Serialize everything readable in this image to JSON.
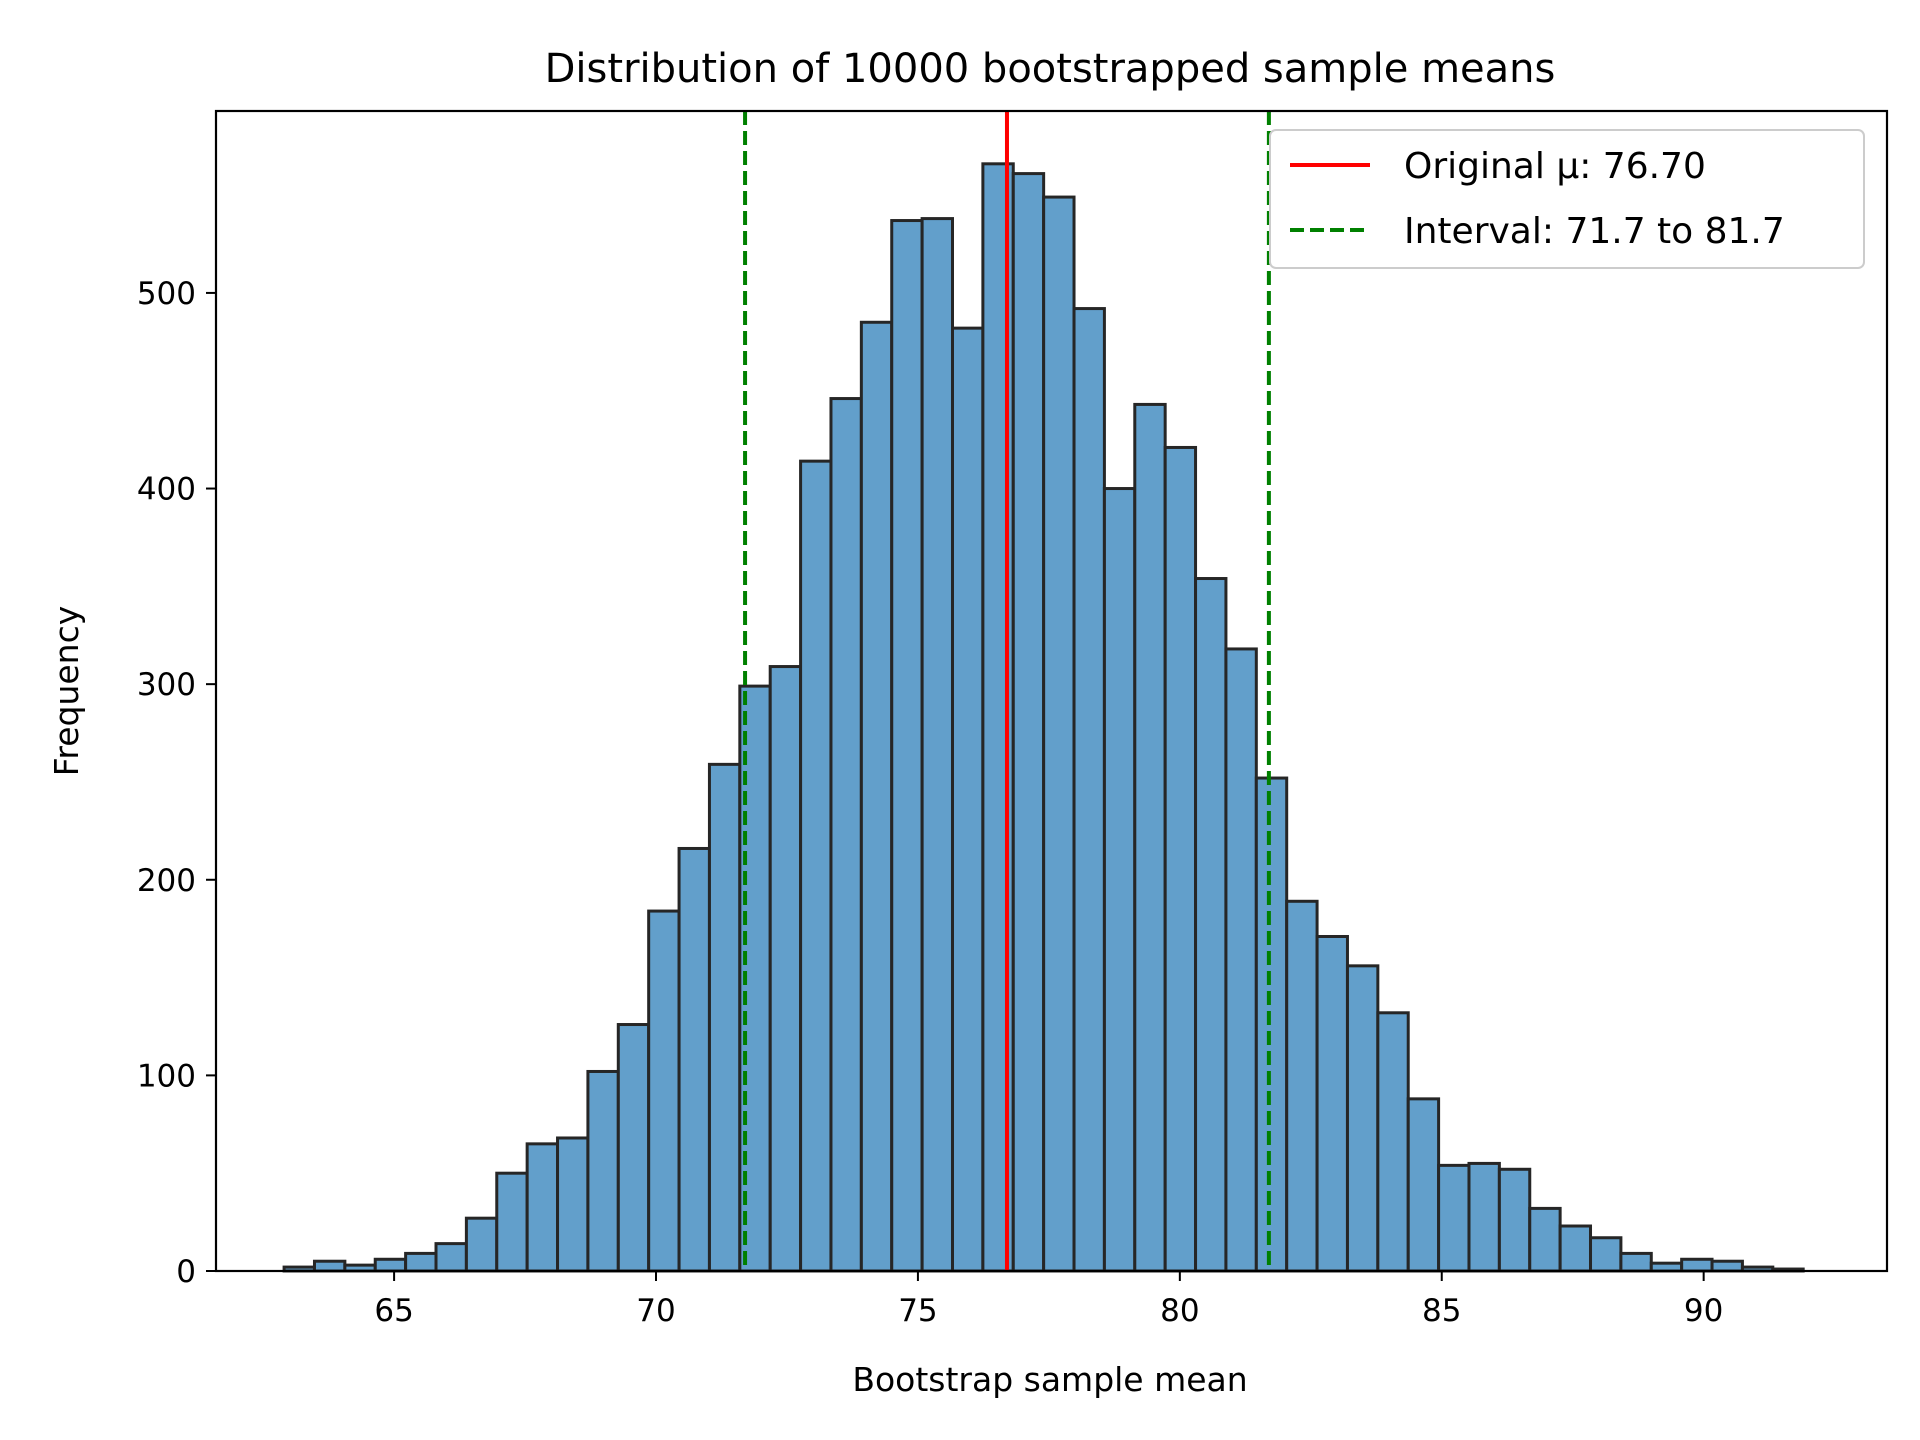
{
  "chart_data": {
    "type": "bar",
    "title": "Distribution of 10000 bootstrapped sample means",
    "xlabel": "Bootstrap sample mean",
    "ylabel": "Frequency",
    "xlim": [
      61.6,
      93.5
    ],
    "ylim": [
      0,
      593
    ],
    "xticks": [
      65,
      70,
      75,
      80,
      85,
      90
    ],
    "yticks": [
      0,
      100,
      200,
      300,
      400,
      500
    ],
    "bin_start": 62.9,
    "bin_width": 0.58,
    "values": [
      2,
      5,
      3,
      6,
      9,
      14,
      27,
      50,
      65,
      68,
      102,
      126,
      184,
      216,
      259,
      299,
      309,
      414,
      446,
      485,
      537,
      538,
      482,
      566,
      561,
      549,
      492,
      400,
      443,
      421,
      354,
      318,
      252,
      189,
      171,
      156,
      132,
      88,
      54,
      55,
      52,
      32,
      23,
      17,
      9,
      4,
      6,
      5,
      2,
      1
    ],
    "colors": {
      "bar": "#629fcb",
      "edge": "#262626",
      "original": "#ff0000",
      "interval": "#008000"
    },
    "original_mean": 76.7,
    "interval": [
      71.7,
      81.7
    ],
    "legend": {
      "placement": "top-right",
      "items": [
        "Original μ: 76.70",
        "Interval: 71.7 to 81.7"
      ]
    },
    "grid": false
  }
}
